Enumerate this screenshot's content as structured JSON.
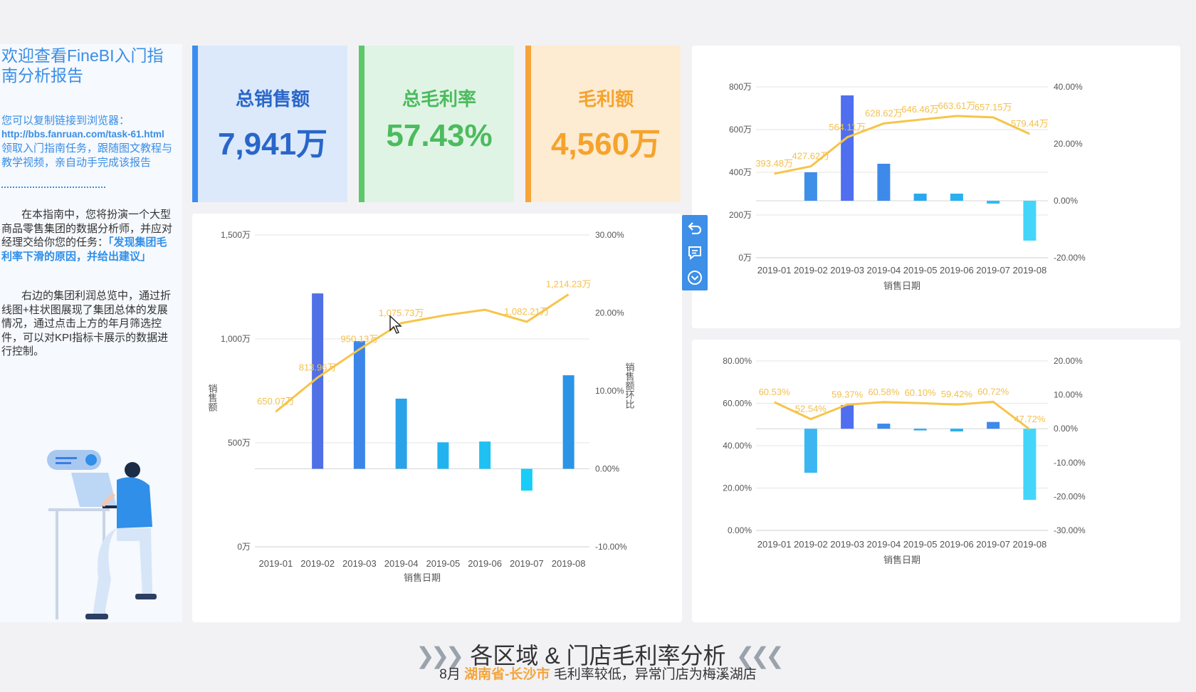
{
  "intro": {
    "title": "欢迎查看FineBI入门指南分析报告",
    "copy_hint": "您可以复制链接到浏览器：",
    "link": "http://bbs.fanruan.com/task-61.html",
    "link_desc": "领取入门指南任务，跟随图文教程与教学视频，亲自动手完成该报告",
    "para1_prefix": "在本指南中，您将扮演一个大型商品零售集团的数据分析师，并应对经理交给你您的任务：",
    "para1_highlight": "「发现集团毛利率下滑的原因，并给出建议」",
    "para2": "右边的集团利润总览中，通过折线图+柱状图展现了集团总体的发展情况，通过点击上方的年月筛选控件，可以对KPI指标卡展示的数据进行控制。"
  },
  "kpis": [
    {
      "label": "总销售额",
      "value": "7,941万",
      "color": "#3b8cf0",
      "bg": "#dbe9fb",
      "text": "#2a66c9"
    },
    {
      "label": "总毛利率",
      "value": "57.43%",
      "color": "#5cc86a",
      "bg": "#e0f4e6",
      "text": "#4cbb5d"
    },
    {
      "label": "毛利额",
      "value": "4,560万",
      "color": "#f5a43a",
      "bg": "#fdebd2",
      "text": "#f5a32c"
    }
  ],
  "chart_data": [
    {
      "type": "bar+line",
      "title": "",
      "xlabel": "销售日期",
      "ylabel": "销售额",
      "y2label": "销售额环比",
      "categories": [
        "2019-01",
        "2019-02",
        "2019-03",
        "2019-04",
        "2019-05",
        "2019-06",
        "2019-07",
        "2019-08"
      ],
      "bar_series": {
        "name": "销售额环比",
        "values": [
          0,
          22.5,
          16.4,
          9.0,
          3.4,
          3.5,
          -2.8,
          12.0
        ],
        "axis": "right"
      },
      "line_series": {
        "name": "销售额",
        "values": [
          650.07,
          813.96,
          950.13,
          1075.73,
          1112,
          1140,
          1082.21,
          1214.23
        ],
        "labels": [
          "650.07万",
          "813.96万",
          "950.13万",
          "1,075.73万",
          "",
          "",
          "1,082.21万",
          "1,214.23万"
        ],
        "axis": "left"
      },
      "y_ticks": [
        "0万",
        "500万",
        "1,000万",
        "1,500万"
      ],
      "ylim": [
        0,
        1500
      ],
      "y2_ticks": [
        "-10.00%",
        "0.00%",
        "10.00%",
        "20.00%",
        "30.00%"
      ],
      "y2lim": [
        -10,
        30
      ]
    },
    {
      "type": "bar+line",
      "xlabel": "销售日期",
      "categories": [
        "2019-01",
        "2019-02",
        "2019-03",
        "2019-04",
        "2019-05",
        "2019-06",
        "2019-07",
        "2019-08"
      ],
      "bar_series": {
        "values": [
          0,
          10,
          37,
          13,
          2.5,
          2.5,
          -1,
          -14
        ],
        "axis": "right"
      },
      "line_series": {
        "values": [
          393.48,
          427.62,
          564.11,
          628.62,
          646.46,
          663.61,
          657.15,
          579.44
        ],
        "labels": [
          "393.48万",
          "427.62万",
          "564.11万",
          "628.62万",
          "646.46万",
          "663.61万",
          "657.15万",
          "579.44万"
        ],
        "axis": "left"
      },
      "y_ticks": [
        "0万",
        "200万",
        "400万",
        "600万",
        "800万"
      ],
      "ylim": [
        0,
        800
      ],
      "y2_ticks": [
        "-20.00%",
        "0.00%",
        "20.00%",
        "40.00%"
      ],
      "y2lim": [
        -20,
        40
      ]
    },
    {
      "type": "bar+line",
      "xlabel": "销售日期",
      "categories": [
        "2019-01",
        "2019-02",
        "2019-03",
        "2019-04",
        "2019-05",
        "2019-06",
        "2019-07",
        "2019-08"
      ],
      "bar_series": {
        "values": [
          0,
          -13,
          7,
          1.5,
          -0.5,
          -0.8,
          2,
          -21
        ],
        "axis": "right"
      },
      "line_series": {
        "values": [
          60.53,
          52.54,
          59.37,
          60.58,
          60.1,
          59.42,
          60.72,
          47.72
        ],
        "labels": [
          "60.53%",
          "52.54%",
          "59.37%",
          "60.58%",
          "60.10%",
          "59.42%",
          "60.72%",
          "47.72%"
        ],
        "axis": "left"
      },
      "y_ticks": [
        "0.00%",
        "20.00%",
        "40.00%",
        "60.00%",
        "80.00%"
      ],
      "ylim": [
        0,
        80
      ],
      "y2_ticks": [
        "-30.00%",
        "-20.00%",
        "-10.00%",
        "0.00%",
        "10.00%",
        "20.00%"
      ],
      "y2lim": [
        -30,
        20
      ]
    }
  ],
  "toolbar": [
    "undo-icon",
    "comment-icon",
    "collapse-icon"
  ],
  "footer": {
    "title": "各区域 & 门店毛利率分析",
    "sub_prefix": "8月",
    "sub_highlight": "湖南省-长沙市",
    "sub_suffix": "毛利率较低，异常门店为梅溪湖店",
    "chev_left": "❯❯❯",
    "chev_right": "❮❮❮"
  }
}
